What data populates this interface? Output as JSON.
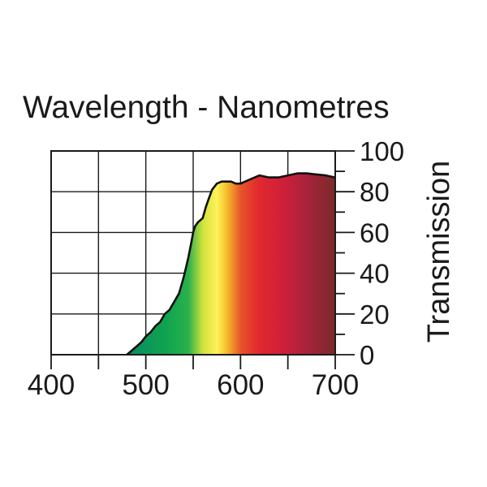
{
  "chart_data": {
    "type": "area",
    "title": "Wavelength - Nanometres",
    "xlabel": "",
    "ylabel": "Transmission",
    "xlim": [
      400,
      700
    ],
    "ylim": [
      0,
      100
    ],
    "x_ticks": [
      "400",
      "500",
      "600",
      "700"
    ],
    "y_ticks": [
      "0",
      "20",
      "40",
      "60",
      "80",
      "100"
    ],
    "grid": true,
    "series": [
      {
        "x": [
          480,
          485,
          490,
          495,
          500,
          505,
          510,
          515,
          520,
          525,
          530,
          535,
          540,
          542,
          545,
          548,
          550,
          552,
          555,
          560,
          563,
          566,
          570,
          575,
          580,
          585,
          590,
          595,
          600,
          610,
          620,
          630,
          640,
          650,
          660,
          670,
          680,
          690,
          700
        ],
        "y": [
          0,
          2,
          4,
          6,
          9,
          11,
          14,
          16,
          20,
          22,
          26,
          30,
          38,
          42,
          48,
          55,
          60,
          63,
          65,
          67,
          72,
          76,
          81,
          84,
          85,
          85,
          85,
          84,
          84,
          86,
          88,
          87,
          87,
          88,
          89,
          89,
          88.5,
          88,
          87
        ]
      }
    ],
    "fill_gradient": [
      {
        "nm": 400,
        "color": "#1a4fa0"
      },
      {
        "nm": 480,
        "color": "#0a8a62"
      },
      {
        "nm": 520,
        "color": "#0fa350"
      },
      {
        "nm": 545,
        "color": "#2bb14c"
      },
      {
        "nm": 560,
        "color": "#cfe23a"
      },
      {
        "nm": 575,
        "color": "#fff25a"
      },
      {
        "nm": 585,
        "color": "#f6c12b"
      },
      {
        "nm": 600,
        "color": "#e8542a"
      },
      {
        "nm": 620,
        "color": "#e0282e"
      },
      {
        "nm": 645,
        "color": "#cf1f3a"
      },
      {
        "nm": 670,
        "color": "#a8233c"
      },
      {
        "nm": 700,
        "color": "#7a2a2a"
      }
    ]
  }
}
